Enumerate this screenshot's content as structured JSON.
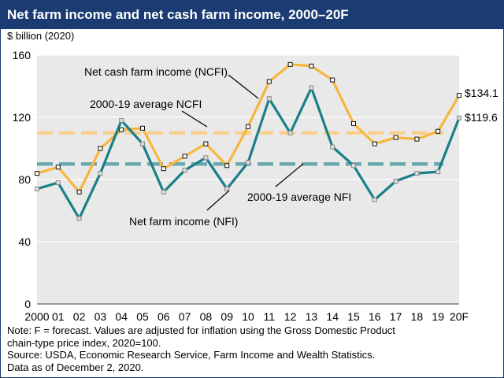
{
  "header": {
    "title": "Net farm income and net cash farm income, 2000–20F"
  },
  "colors": {
    "ncfi": "#f7b63c",
    "nfi": "#1b7f88",
    "ncfi_avg": "#f9cf8e",
    "nfi_avg": "#6aa8ad",
    "plot_bg": "#e9e9e9",
    "title_bg": "#1a3c73"
  },
  "chart_data": {
    "type": "line",
    "title": "Net farm income and net cash farm income, 2000–20F",
    "ylabel": "$ billion (2020)",
    "xlabel": "",
    "ylim": [
      0,
      160
    ],
    "yticks": [
      0,
      40,
      80,
      120,
      160
    ],
    "grid": "horizontal",
    "categories": [
      "2000",
      "01",
      "02",
      "03",
      "04",
      "05",
      "06",
      "07",
      "08",
      "09",
      "10",
      "11",
      "12",
      "13",
      "14",
      "15",
      "16",
      "17",
      "18",
      "19",
      "20F"
    ],
    "series": [
      {
        "name": "Net cash farm income (NCFI)",
        "values": [
          84,
          88,
          72,
          100,
          112,
          113,
          87,
          95,
          103,
          89,
          114,
          143,
          154,
          153,
          144,
          116,
          103,
          107,
          106,
          111,
          134.1
        ]
      },
      {
        "name": "Net farm income (NFI)",
        "values": [
          74,
          78,
          55,
          84,
          118,
          103,
          72,
          86,
          94,
          74,
          91,
          132,
          110,
          139,
          101,
          89,
          67,
          79,
          84,
          85,
          119.6
        ]
      }
    ],
    "reference_lines": [
      {
        "name": "2000-19 average NCFI",
        "value": 110
      },
      {
        "name": "2000-19 average NFI",
        "value": 90
      }
    ],
    "annotations": {
      "ncfi_label": "Net cash farm income (NCFI)",
      "nfi_label": "Net farm income (NFI)",
      "ncfi_avg_label": "2000-19 average NCFI",
      "nfi_avg_label": "2000-19 average NFI",
      "ncfi_end_value": "$134.1",
      "nfi_end_value": "$119.6"
    }
  },
  "notes": {
    "line1": "Note: F = forecast. Values are adjusted for inflation using the Gross Domestic Product",
    "line2": "chain-type price index, 2020=100.",
    "line3": "Source: USDA, Economic Research Service, Farm Income and Wealth Statistics.",
    "line4": "Data as of December 2, 2020."
  }
}
